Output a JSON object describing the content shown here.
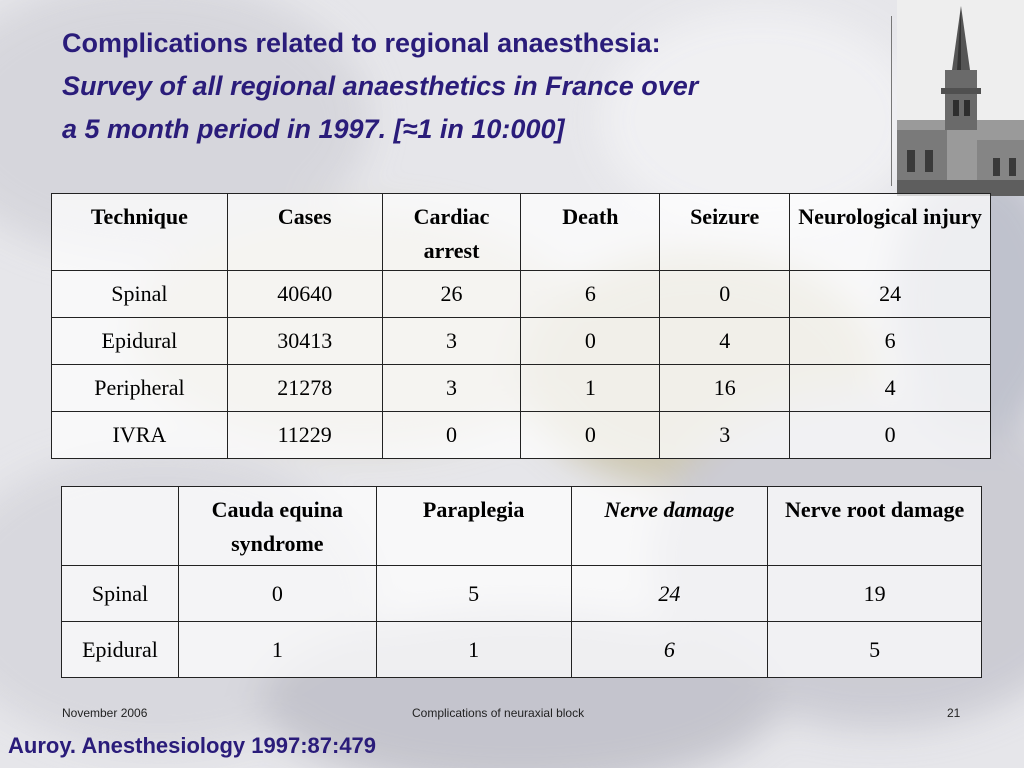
{
  "slide": {
    "title_line1": "Complications related to regional anaesthesia:",
    "title_line2": "Survey of all regional anaesthetics in France over",
    "title_line3": "a 5 month period in 1997. [≈1 in 10:000]"
  },
  "table1": {
    "headers": [
      "Technique",
      "Cases",
      "Cardiac arrest",
      "Death",
      "Seizure",
      "Neurological injury"
    ],
    "rows": [
      [
        "Spinal",
        "40640",
        "26",
        "6",
        "0",
        "24"
      ],
      [
        "Epidural",
        "30413",
        "3",
        "0",
        "4",
        "6"
      ],
      [
        "Peripheral",
        "21278",
        "3",
        "1",
        "16",
        "4"
      ],
      [
        "IVRA",
        "11229",
        "0",
        "0",
        "3",
        "0"
      ]
    ]
  },
  "table2": {
    "headers": [
      "",
      "Cauda equina syndrome",
      "Paraplegia",
      "Nerve damage",
      "Nerve root damage"
    ],
    "rows": [
      [
        "Spinal",
        "0",
        "5",
        "24",
        "19"
      ],
      [
        "Epidural",
        "1",
        "1",
        "6",
        "5"
      ]
    ]
  },
  "footer": {
    "date": "November 2006",
    "center": "Complications of neuraxial block",
    "page": "21"
  },
  "citation": "Auroy. Anesthesiology 1997:87:479"
}
